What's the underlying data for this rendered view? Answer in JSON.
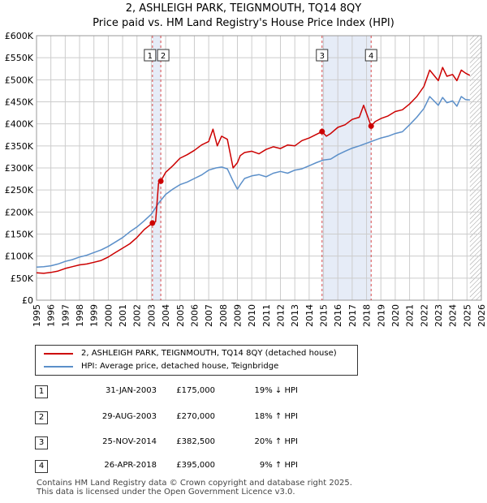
{
  "header": {
    "title": "2, ASHLEIGH PARK, TEIGNMOUTH, TQ14 8QY",
    "subtitle": "Price paid vs. HM Land Registry's House Price Index (HPI)"
  },
  "colors": {
    "price_line": "#cc0000",
    "hpi_line": "#5b8fc9",
    "shade": "#e6ecf7",
    "grid": "#cccccc"
  },
  "chart_data": {
    "type": "line",
    "title": "2, ASHLEIGH PARK, TEIGNMOUTH, TQ14 8QY",
    "subtitle": "Price paid vs. HM Land Registry's House Price Index (HPI)",
    "xlim": [
      1995,
      2026
    ],
    "ylim": [
      0,
      600000
    ],
    "x_ticks": [
      1995,
      1996,
      1997,
      1998,
      1999,
      2000,
      2001,
      2002,
      2003,
      2004,
      2005,
      2006,
      2007,
      2008,
      2009,
      2010,
      2011,
      2012,
      2013,
      2014,
      2015,
      2016,
      2017,
      2018,
      2019,
      2020,
      2021,
      2022,
      2023,
      2024,
      2025,
      2026
    ],
    "y_ticks": [
      {
        "value": 0,
        "label": "£0"
      },
      {
        "value": 50000,
        "label": "£50K"
      },
      {
        "value": 100000,
        "label": "£100K"
      },
      {
        "value": 150000,
        "label": "£150K"
      },
      {
        "value": 200000,
        "label": "£200K"
      },
      {
        "value": 250000,
        "label": "£250K"
      },
      {
        "value": 300000,
        "label": "£300K"
      },
      {
        "value": 350000,
        "label": "£350K"
      },
      {
        "value": 400000,
        "label": "£400K"
      },
      {
        "value": 450000,
        "label": "£450K"
      },
      {
        "value": 500000,
        "label": "£500K"
      },
      {
        "value": 550000,
        "label": "£550K"
      },
      {
        "value": 600000,
        "label": "£600K"
      }
    ],
    "grid": true,
    "shaded_ranges": [
      [
        2003.08,
        2003.66
      ],
      [
        2014.9,
        2018.32
      ]
    ],
    "hatched_after": 2025.2,
    "series": [
      {
        "name": "2, ASHLEIGH PARK, TEIGNMOUTH, TQ14 8QY (detached house)",
        "color": "#cc0000",
        "x": [
          1995,
          1995.5,
          1996,
          1996.5,
          1997,
          1997.5,
          1998,
          1998.5,
          1999,
          1999.5,
          2000,
          2000.5,
          2001,
          2001.5,
          2002,
          2002.5,
          2003.08,
          2003.3,
          2003.5,
          2003.66,
          2004,
          2004.5,
          2005,
          2005.5,
          2006,
          2006.5,
          2007,
          2007.3,
          2007.6,
          2007.9,
          2008.3,
          2008.7,
          2009,
          2009.2,
          2009.5,
          2010,
          2010.5,
          2011,
          2011.5,
          2012,
          2012.5,
          2013,
          2013.5,
          2014,
          2014.5,
          2014.9,
          2015.2,
          2015.5,
          2016,
          2016.5,
          2017,
          2017.5,
          2017.8,
          2018.1,
          2018.32,
          2018.6,
          2019,
          2019.5,
          2020,
          2020.5,
          2021,
          2021.5,
          2022,
          2022.4,
          2022.7,
          2023,
          2023.3,
          2023.6,
          2024,
          2024.3,
          2024.6,
          2024.9,
          2025.2
        ],
        "y": [
          62000,
          61000,
          63000,
          66000,
          72000,
          76000,
          80000,
          82000,
          86000,
          90000,
          98000,
          108000,
          118000,
          128000,
          142000,
          160000,
          175000,
          178000,
          265000,
          270000,
          290000,
          305000,
          322000,
          330000,
          340000,
          352000,
          360000,
          388000,
          350000,
          372000,
          365000,
          300000,
          312000,
          328000,
          335000,
          338000,
          332000,
          342000,
          348000,
          344000,
          352000,
          350000,
          362000,
          368000,
          376000,
          382500,
          372000,
          378000,
          392000,
          398000,
          410000,
          415000,
          442000,
          415000,
          395000,
          405000,
          412000,
          418000,
          428000,
          432000,
          445000,
          462000,
          485000,
          522000,
          510000,
          498000,
          528000,
          508000,
          512000,
          498000,
          522000,
          515000,
          510000
        ]
      },
      {
        "name": "HPI: Average price, detached house, Teignbridge",
        "color": "#5b8fc9",
        "x": [
          1995,
          1995.5,
          1996,
          1996.5,
          1997,
          1997.5,
          1998,
          1998.5,
          1999,
          1999.5,
          2000,
          2000.5,
          2001,
          2001.5,
          2002,
          2002.5,
          2003,
          2003.5,
          2004,
          2004.5,
          2005,
          2005.5,
          2006,
          2006.5,
          2007,
          2007.5,
          2007.9,
          2008.3,
          2008.7,
          2009,
          2009.2,
          2009.5,
          2010,
          2010.5,
          2011,
          2011.5,
          2012,
          2012.5,
          2013,
          2013.5,
          2014,
          2014.5,
          2015,
          2015.5,
          2016,
          2016.5,
          2017,
          2017.5,
          2018,
          2018.5,
          2019,
          2019.5,
          2020,
          2020.5,
          2021,
          2021.5,
          2022,
          2022.4,
          2022.7,
          2023,
          2023.3,
          2023.6,
          2024,
          2024.3,
          2024.6,
          2024.9,
          2025.2
        ],
        "y": [
          75000,
          76000,
          78000,
          82000,
          88000,
          92000,
          98000,
          102000,
          108000,
          114000,
          122000,
          132000,
          142000,
          155000,
          166000,
          180000,
          195000,
          220000,
          240000,
          252000,
          262000,
          268000,
          276000,
          284000,
          295000,
          300000,
          302000,
          298000,
          270000,
          252000,
          262000,
          276000,
          282000,
          285000,
          280000,
          288000,
          292000,
          288000,
          295000,
          298000,
          305000,
          312000,
          318000,
          320000,
          330000,
          338000,
          345000,
          350000,
          356000,
          362000,
          368000,
          372000,
          378000,
          382000,
          398000,
          415000,
          435000,
          462000,
          452000,
          442000,
          460000,
          448000,
          452000,
          440000,
          462000,
          455000,
          454000
        ]
      }
    ],
    "annotations": [
      {
        "label": "1",
        "x": 2003.08,
        "y": 175000
      },
      {
        "label": "2",
        "x": 2003.66,
        "y": 270000
      },
      {
        "label": "3",
        "x": 2014.9,
        "y": 382500
      },
      {
        "label": "4",
        "x": 2018.32,
        "y": 395000
      }
    ]
  },
  "legend": {
    "items": [
      {
        "label": "2, ASHLEIGH PARK, TEIGNMOUTH, TQ14 8QY (detached house)",
        "color": "#cc0000"
      },
      {
        "label": "HPI: Average price, detached house, Teignbridge",
        "color": "#5b8fc9"
      }
    ]
  },
  "sales": [
    {
      "num": "1",
      "date": "31-JAN-2003",
      "price": "£175,000",
      "hpi": "19% ↓ HPI"
    },
    {
      "num": "2",
      "date": "29-AUG-2003",
      "price": "£270,000",
      "hpi": "18% ↑ HPI"
    },
    {
      "num": "3",
      "date": "25-NOV-2014",
      "price": "£382,500",
      "hpi": "20% ↑ HPI"
    },
    {
      "num": "4",
      "date": "26-APR-2018",
      "price": "£395,000",
      "hpi": "9% ↑ HPI"
    }
  ],
  "footer": {
    "line1": "Contains HM Land Registry data © Crown copyright and database right 2025.",
    "line2": "This data is licensed under the Open Government Licence v3.0."
  }
}
